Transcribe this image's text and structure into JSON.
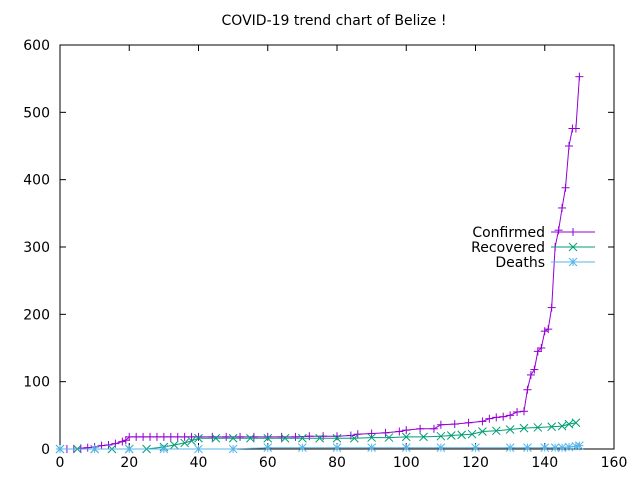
{
  "chart_data": {
    "type": "line",
    "title": "COVID-19 trend chart of Belize !",
    "xlabel": "",
    "ylabel": "",
    "xlim": [
      0,
      160
    ],
    "ylim": [
      0,
      600
    ],
    "x_ticks": [
      0,
      20,
      40,
      60,
      80,
      100,
      120,
      140,
      160
    ],
    "y_ticks": [
      0,
      100,
      200,
      300,
      400,
      500,
      600
    ],
    "grid": false,
    "legend_position": "right",
    "series": [
      {
        "name": "Confirmed",
        "color": "#9400d3",
        "marker": "plus",
        "points": [
          [
            0,
            0
          ],
          [
            2,
            0
          ],
          [
            4,
            0
          ],
          [
            6,
            1
          ],
          [
            8,
            2
          ],
          [
            10,
            3
          ],
          [
            12,
            5
          ],
          [
            14,
            6
          ],
          [
            16,
            8
          ],
          [
            18,
            11
          ],
          [
            19,
            13
          ],
          [
            20,
            18
          ],
          [
            22,
            18
          ],
          [
            24,
            18
          ],
          [
            26,
            18
          ],
          [
            28,
            18
          ],
          [
            30,
            18
          ],
          [
            32,
            18
          ],
          [
            34,
            18
          ],
          [
            36,
            18
          ],
          [
            38,
            18
          ],
          [
            40,
            18
          ],
          [
            44,
            18
          ],
          [
            48,
            18
          ],
          [
            52,
            18
          ],
          [
            56,
            18
          ],
          [
            60,
            18
          ],
          [
            64,
            18
          ],
          [
            68,
            18
          ],
          [
            72,
            19
          ],
          [
            76,
            19
          ],
          [
            80,
            19
          ],
          [
            84,
            20
          ],
          [
            86,
            22
          ],
          [
            90,
            23
          ],
          [
            94,
            24
          ],
          [
            98,
            26
          ],
          [
            100,
            28
          ],
          [
            104,
            30
          ],
          [
            108,
            30
          ],
          [
            110,
            36
          ],
          [
            114,
            37
          ],
          [
            118,
            39
          ],
          [
            122,
            41
          ],
          [
            124,
            45
          ],
          [
            126,
            47
          ],
          [
            128,
            48
          ],
          [
            130,
            50
          ],
          [
            132,
            55
          ],
          [
            134,
            56
          ],
          [
            135,
            88
          ],
          [
            136,
            110
          ],
          [
            137,
            118
          ],
          [
            138,
            145
          ],
          [
            139,
            150
          ],
          [
            140,
            175
          ],
          [
            141,
            178
          ],
          [
            142,
            210
          ],
          [
            143,
            300
          ],
          [
            144,
            325
          ],
          [
            145,
            358
          ],
          [
            146,
            388
          ],
          [
            147,
            450
          ],
          [
            148,
            476
          ],
          [
            149,
            476
          ],
          [
            150,
            553
          ]
        ]
      },
      {
        "name": "Recovered",
        "color": "#009e73",
        "marker": "cross",
        "points": [
          [
            0,
            0
          ],
          [
            5,
            0
          ],
          [
            10,
            0
          ],
          [
            15,
            0
          ],
          [
            20,
            0
          ],
          [
            25,
            0
          ],
          [
            30,
            3
          ],
          [
            33,
            6
          ],
          [
            36,
            9
          ],
          [
            38,
            12
          ],
          [
            40,
            16
          ],
          [
            45,
            16
          ],
          [
            50,
            16
          ],
          [
            55,
            16
          ],
          [
            60,
            16
          ],
          [
            65,
            16
          ],
          [
            70,
            16
          ],
          [
            75,
            16
          ],
          [
            80,
            16
          ],
          [
            85,
            16
          ],
          [
            90,
            17
          ],
          [
            95,
            17
          ],
          [
            100,
            18
          ],
          [
            105,
            18
          ],
          [
            110,
            19
          ],
          [
            113,
            20
          ],
          [
            116,
            21
          ],
          [
            119,
            22
          ],
          [
            122,
            26
          ],
          [
            126,
            27
          ],
          [
            130,
            29
          ],
          [
            134,
            31
          ],
          [
            138,
            32
          ],
          [
            142,
            33
          ],
          [
            145,
            34
          ],
          [
            147,
            37
          ],
          [
            149,
            39
          ]
        ]
      },
      {
        "name": "Deaths",
        "color": "#56b4e9",
        "marker": "star",
        "points": [
          [
            0,
            0
          ],
          [
            10,
            0
          ],
          [
            20,
            0
          ],
          [
            30,
            0
          ],
          [
            40,
            0
          ],
          [
            50,
            0
          ],
          [
            60,
            2
          ],
          [
            70,
            2
          ],
          [
            80,
            2
          ],
          [
            90,
            2
          ],
          [
            100,
            2
          ],
          [
            110,
            2
          ],
          [
            120,
            2
          ],
          [
            130,
            2
          ],
          [
            135,
            2
          ],
          [
            140,
            2
          ],
          [
            143,
            2
          ],
          [
            145,
            2
          ],
          [
            147,
            3
          ],
          [
            149,
            4
          ],
          [
            150,
            5
          ]
        ]
      }
    ]
  }
}
